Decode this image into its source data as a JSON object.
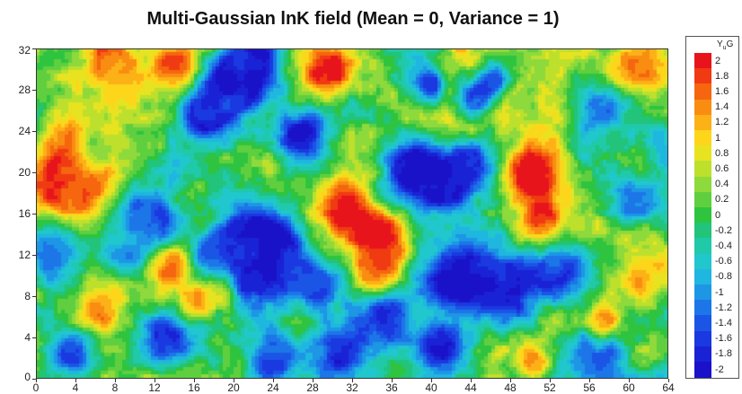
{
  "chart_data": {
    "type": "heatmap",
    "title": "Multi-Gaussian lnK field (Mean = 0, Variance = 1)",
    "xlabel": "",
    "ylabel": "",
    "xlim": [
      0,
      64
    ],
    "ylim": [
      0,
      32
    ],
    "x_ticks": [
      "0",
      "4",
      "8",
      "12",
      "16",
      "20",
      "24",
      "28",
      "32",
      "36",
      "40",
      "44",
      "48",
      "52",
      "56",
      "60",
      "64"
    ],
    "y_ticks": [
      "0",
      "4",
      "8",
      "12",
      "16",
      "20",
      "24",
      "28",
      "32"
    ],
    "grid": false,
    "colorbar": {
      "title_main": "Y",
      "title_sub": "u",
      "title_tail": "G",
      "position": "right",
      "levels": [
        "2",
        "1.8",
        "1.6",
        "1.4",
        "1.2",
        "1",
        "0.8",
        "0.6",
        "0.4",
        "0.2",
        "0",
        "-0.2",
        "-0.4",
        "-0.6",
        "-0.8",
        "-1",
        "-1.2",
        "-1.4",
        "-1.6",
        "-1.8",
        "-2"
      ],
      "colors": [
        "#e8141c",
        "#f03a12",
        "#f5660f",
        "#f98d12",
        "#fcb116",
        "#fdd61b",
        "#e8e320",
        "#bde02d",
        "#8ed93b",
        "#5fcf3f",
        "#2fc43f",
        "#21c47a",
        "#20c9a8",
        "#20c7cd",
        "#1fb6e0",
        "#1d97e5",
        "#1c76e8",
        "#1b55e6",
        "#1a39e0",
        "#1a22d6",
        "#1a12c8"
      ]
    },
    "features": [
      {
        "x": 4.5,
        "y": 20.5,
        "value": 2,
        "r": 3.2
      },
      {
        "x": 3.2,
        "y": 18.3,
        "value": 1.7,
        "r": 1.6
      },
      {
        "x": 7.5,
        "y": 31.2,
        "value": 1.8,
        "r": 1.4
      },
      {
        "x": 14,
        "y": 30.5,
        "value": 1.5,
        "r": 1.6
      },
      {
        "x": 29.5,
        "y": 30,
        "value": 1.9,
        "r": 2
      },
      {
        "x": 61,
        "y": 30,
        "value": 1.4,
        "r": 1.8
      },
      {
        "x": 51,
        "y": 20,
        "value": 2,
        "r": 2
      },
      {
        "x": 51.5,
        "y": 15.3,
        "value": 1.7,
        "r": 1.3
      },
      {
        "x": 31,
        "y": 16.3,
        "value": 1.8,
        "r": 2
      },
      {
        "x": 35.5,
        "y": 13.3,
        "value": 1.9,
        "r": 2.2
      },
      {
        "x": 34.5,
        "y": 10.3,
        "value": 1.7,
        "r": 1.6
      },
      {
        "x": 13.5,
        "y": 10.7,
        "value": 1.9,
        "r": 1.4
      },
      {
        "x": 16.5,
        "y": 7.5,
        "value": 1.7,
        "r": 1.3
      },
      {
        "x": 18.5,
        "y": 8.5,
        "value": 1.7,
        "r": 1.2
      },
      {
        "x": 6.5,
        "y": 6.7,
        "value": 1.2,
        "r": 1.6
      },
      {
        "x": 57.5,
        "y": 5.5,
        "value": 1.6,
        "r": 1.1
      },
      {
        "x": 50.5,
        "y": 1.5,
        "value": 1.6,
        "r": 1.4
      },
      {
        "x": 62,
        "y": 10,
        "value": 1.1,
        "r": 2.2
      },
      {
        "x": 9,
        "y": 28.5,
        "value": 1.1,
        "r": 2
      },
      {
        "x": 21.5,
        "y": 30.5,
        "value": -2,
        "r": 2.5
      },
      {
        "x": 19.5,
        "y": 27.5,
        "value": -2,
        "r": 2
      },
      {
        "x": 17,
        "y": 25.5,
        "value": -1.8,
        "r": 1.6
      },
      {
        "x": 27,
        "y": 23.5,
        "value": -1.9,
        "r": 1.8
      },
      {
        "x": 38,
        "y": 20.5,
        "value": -2,
        "r": 2.2
      },
      {
        "x": 41.5,
        "y": 18.5,
        "value": -1.9,
        "r": 1.8
      },
      {
        "x": 44,
        "y": 21,
        "value": -1.8,
        "r": 1.6
      },
      {
        "x": 40,
        "y": 28.5,
        "value": -1.8,
        "r": 1.2
      },
      {
        "x": 44.5,
        "y": 27,
        "value": -1.7,
        "r": 1.2
      },
      {
        "x": 46.5,
        "y": 29,
        "value": -1.6,
        "r": 1.1
      },
      {
        "x": 22,
        "y": 13,
        "value": -2,
        "r": 3.2
      },
      {
        "x": 24,
        "y": 10.5,
        "value": -1.9,
        "r": 2.2
      },
      {
        "x": 18.5,
        "y": 11.5,
        "value": -1.6,
        "r": 1.8
      },
      {
        "x": 11.5,
        "y": 15.5,
        "value": -1.7,
        "r": 2
      },
      {
        "x": 28.5,
        "y": 9,
        "value": -1.5,
        "r": 1.6
      },
      {
        "x": 42.5,
        "y": 10,
        "value": -2,
        "r": 2.6
      },
      {
        "x": 47.5,
        "y": 9,
        "value": -1.9,
        "r": 2.4
      },
      {
        "x": 53,
        "y": 10.5,
        "value": -1.7,
        "r": 2
      },
      {
        "x": 13,
        "y": 3.5,
        "value": -1.9,
        "r": 2.2
      },
      {
        "x": 3.5,
        "y": 2.5,
        "value": -1.7,
        "r": 1.6
      },
      {
        "x": 31,
        "y": 2.5,
        "value": -1.7,
        "r": 2
      },
      {
        "x": 36,
        "y": 6,
        "value": -1.6,
        "r": 1.8
      },
      {
        "x": 41,
        "y": 3,
        "value": -1.6,
        "r": 1.8
      },
      {
        "x": 1.5,
        "y": 12,
        "value": -1.2,
        "r": 2
      },
      {
        "x": 57,
        "y": 26,
        "value": -1.1,
        "r": 1.8
      },
      {
        "x": 61,
        "y": 17,
        "value": -1.1,
        "r": 1.8
      },
      {
        "x": 9,
        "y": 13,
        "value": -0.8,
        "r": 2.4
      },
      {
        "x": 24,
        "y": 2,
        "value": -1.2,
        "r": 2
      },
      {
        "x": 57,
        "y": 1,
        "value": -1.2,
        "r": 2
      },
      {
        "x": 6,
        "y": 22.5,
        "value": -0.9,
        "r": 1.4
      }
    ]
  }
}
